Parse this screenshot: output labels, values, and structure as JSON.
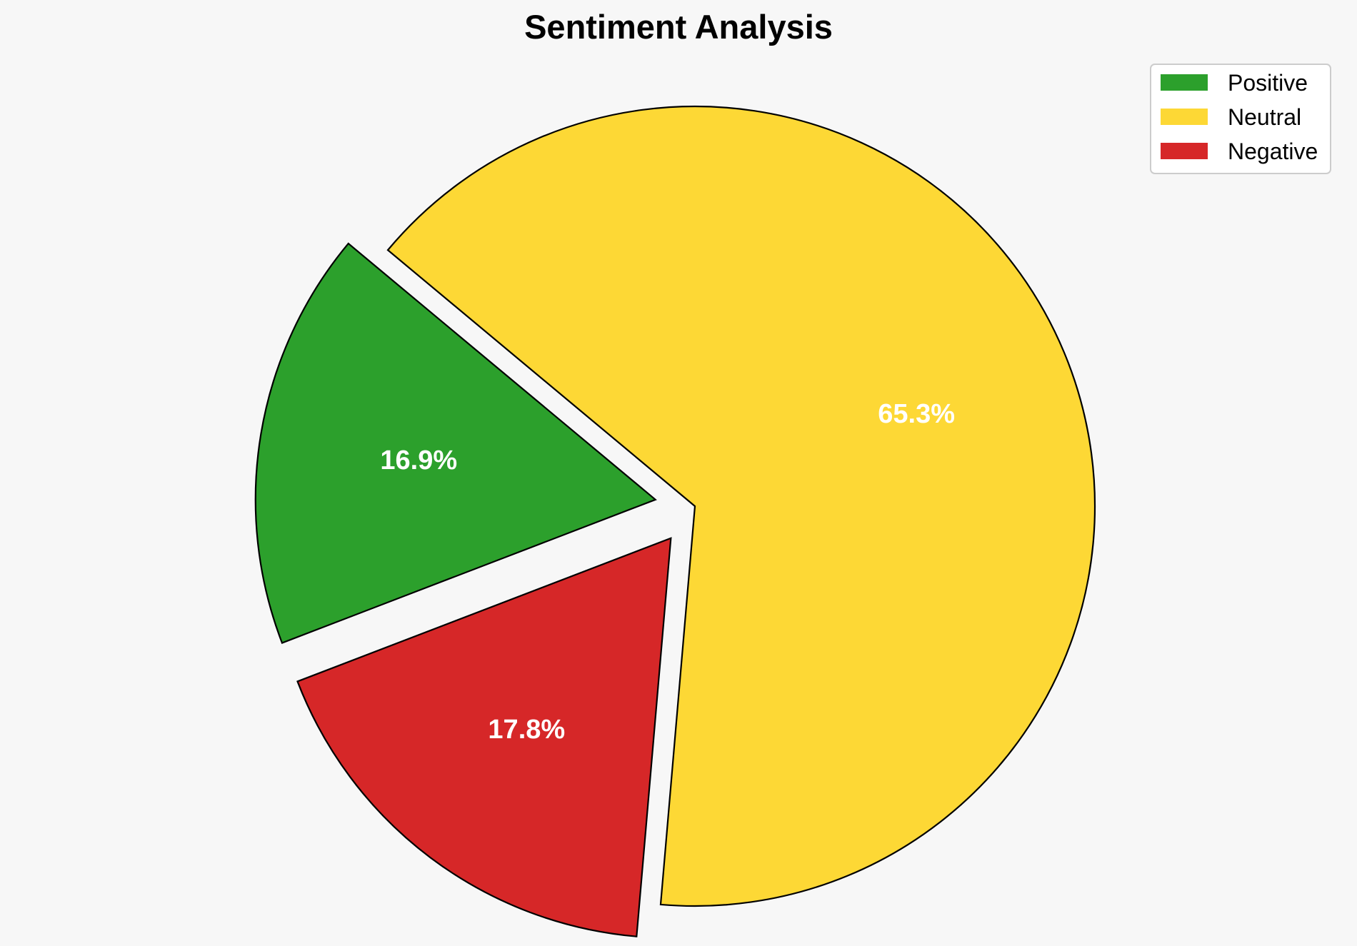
{
  "chart_data": {
    "type": "pie",
    "title": "Sentiment Analysis",
    "slices": [
      {
        "label": "Positive",
        "value": 16.9,
        "display": "16.9%",
        "color": "#2ca02c",
        "exploded": true
      },
      {
        "label": "Neutral",
        "value": 65.3,
        "display": "65.3%",
        "color": "#fdd835",
        "exploded": false
      },
      {
        "label": "Negative",
        "value": 17.8,
        "display": "17.8%",
        "color": "#d62728",
        "exploded": true
      }
    ],
    "start_angle_deg": 201,
    "direction": "clockwise",
    "legend_position": "top-right",
    "edge_color": "#000000",
    "label_color": "#ffffff"
  }
}
